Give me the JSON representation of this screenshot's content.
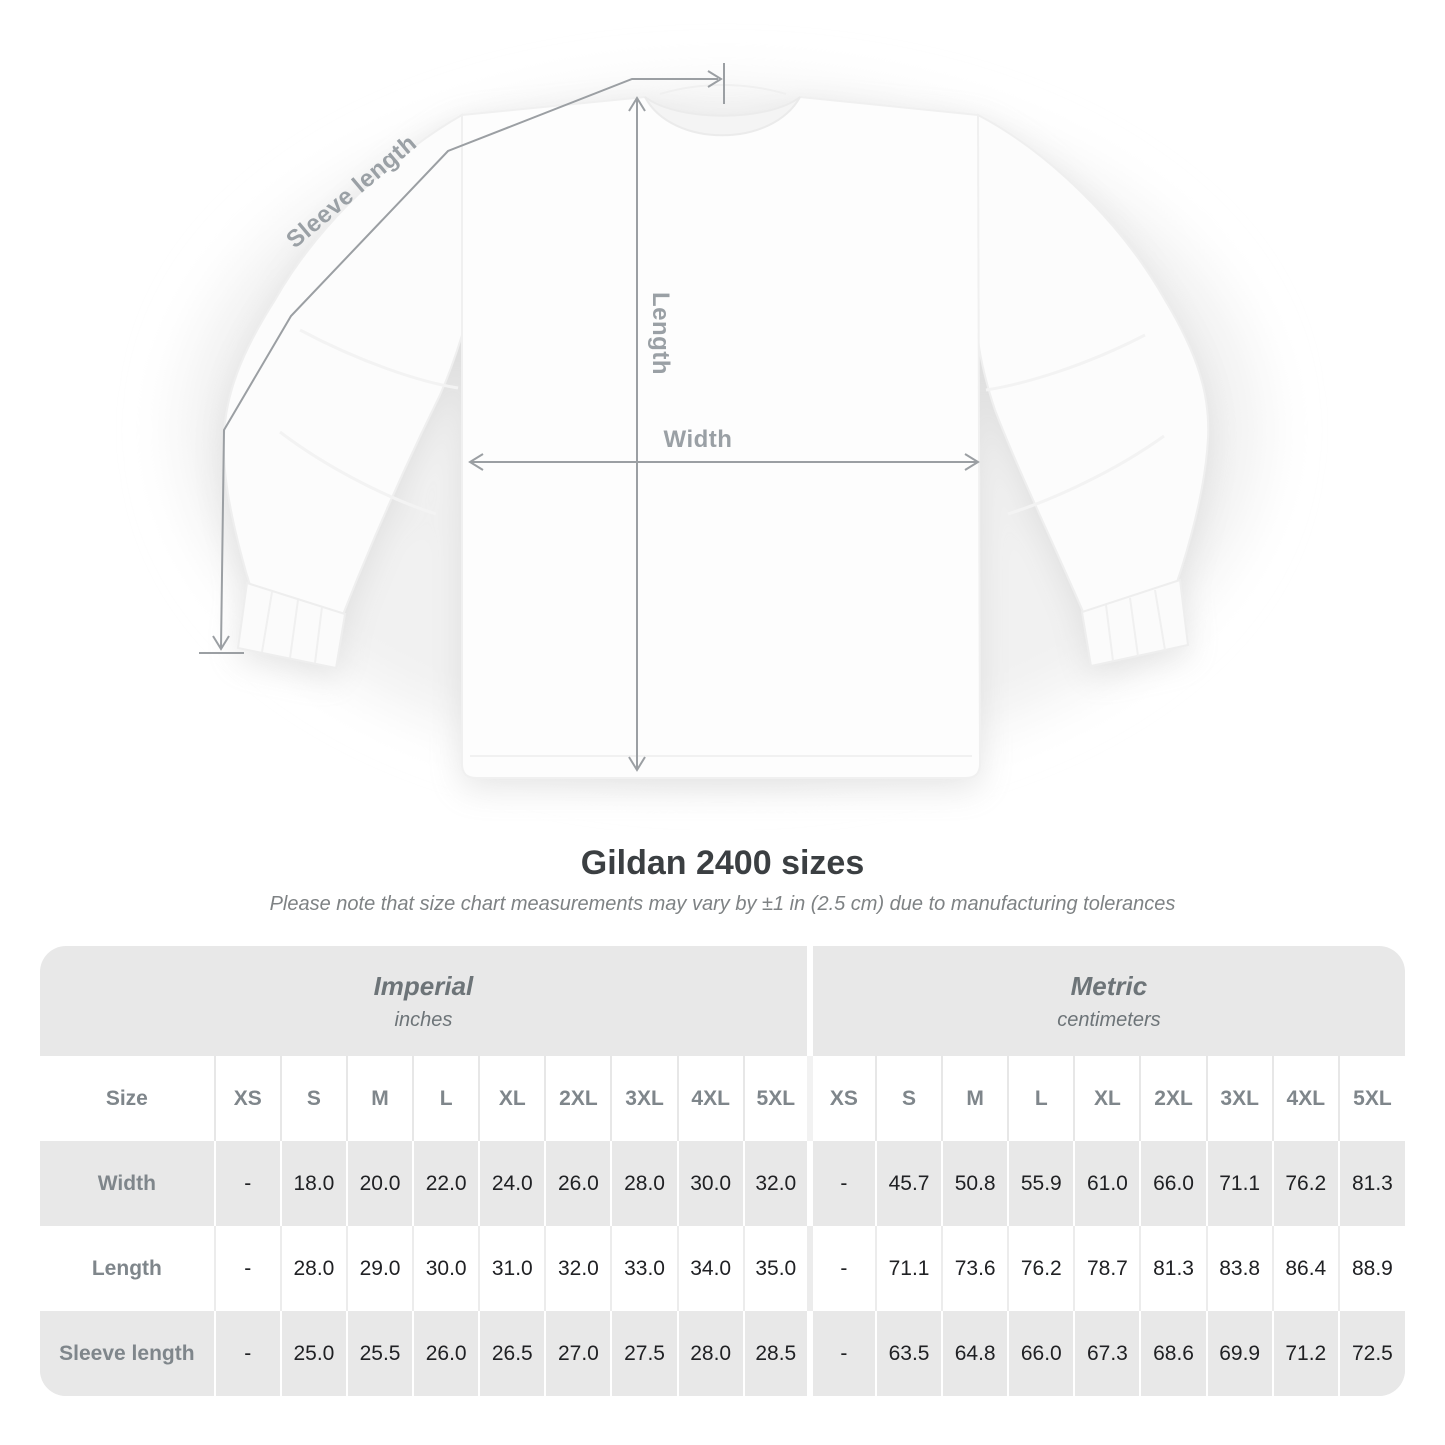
{
  "colors": {
    "measure_line": "#9b9fa3",
    "measure_label": "#9aa0a5",
    "title_text": "#3b3f42",
    "subtitle_text": "#7e8284",
    "table_bg": "#e8e8e8",
    "table_header_text": "#7f868b",
    "table_value_text": "#202124"
  },
  "diagram": {
    "sleeve_label": "Sleeve length",
    "length_label": "Length",
    "width_label": "Width"
  },
  "heading": {
    "title": "Gildan 2400 sizes",
    "subtitle": "Please note that size chart measurements may vary by ±1 in (2.5 cm) due to manufacturing tolerances"
  },
  "chart_data": {
    "type": "table",
    "title": "Gildan 2400 sizes",
    "note": "Please note that size chart measurements may vary by ±1 in (2.5 cm) due to manufacturing tolerances",
    "size_header": "Size",
    "sections": [
      {
        "label": "Imperial",
        "unit": "inches"
      },
      {
        "label": "Metric",
        "unit": "centimeters"
      }
    ],
    "sizes": [
      "XS",
      "S",
      "M",
      "L",
      "XL",
      "2XL",
      "3XL",
      "4XL",
      "5XL"
    ],
    "rows": [
      {
        "label": "Width",
        "imperial": [
          "-",
          "18.0",
          "20.0",
          "22.0",
          "24.0",
          "26.0",
          "28.0",
          "30.0",
          "32.0"
        ],
        "metric": [
          "-",
          "45.7",
          "50.8",
          "55.9",
          "61.0",
          "66.0",
          "71.1",
          "76.2",
          "81.3"
        ]
      },
      {
        "label": "Length",
        "imperial": [
          "-",
          "28.0",
          "29.0",
          "30.0",
          "31.0",
          "32.0",
          "33.0",
          "34.0",
          "35.0"
        ],
        "metric": [
          "-",
          "71.1",
          "73.6",
          "76.2",
          "78.7",
          "81.3",
          "83.8",
          "86.4",
          "88.9"
        ]
      },
      {
        "label": "Sleeve length",
        "imperial": [
          "-",
          "25.0",
          "25.5",
          "26.0",
          "26.5",
          "27.0",
          "27.5",
          "28.0",
          "28.5"
        ],
        "metric": [
          "-",
          "63.5",
          "64.8",
          "66.0",
          "67.3",
          "68.6",
          "69.9",
          "71.2",
          "72.5"
        ]
      }
    ]
  }
}
